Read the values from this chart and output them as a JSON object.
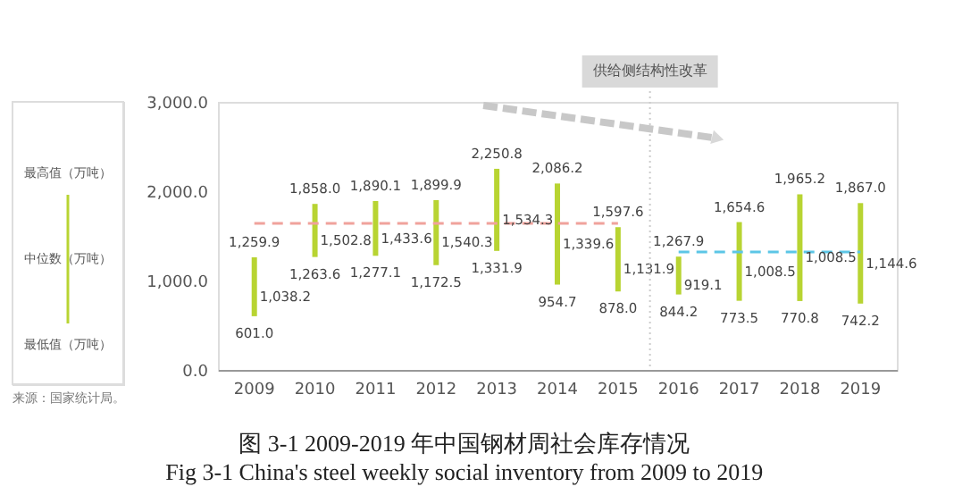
{
  "chart_data": {
    "type": "bar",
    "title": "图 3-1 2009-2019 年中国钢材周社会库存情况",
    "subtitle": "Fig 3-1 China's steel weekly social inventory from 2009 to 2019",
    "categories": [
      "2009",
      "2010",
      "2011",
      "2012",
      "2013",
      "2014",
      "2015",
      "2016",
      "2017",
      "2018",
      "2019"
    ],
    "series": [
      {
        "color": "#b8d432",
        "base": [
          601.0,
          1263.6,
          1277.1,
          1172.5,
          1331.9,
          954.7,
          878.0,
          844.2,
          773.5,
          770.8,
          742.2
        ],
        "values": [
          658.9,
          594.4,
          613.0,
          727.4,
          918.9,
          1131.5,
          719.6,
          423.7,
          881.1,
          1194.4,
          1124.8
        ]
      },
      {
        "type": "line",
        "color": "#f0a29c",
        "line_style": "dashed",
        "values": [
          1640,
          1640,
          1640,
          1640,
          1640,
          1640,
          1640,
          null,
          null,
          null,
          null
        ]
      },
      {
        "type": "line",
        "color": "#5cc6e6",
        "line_style": "dashed",
        "values": [
          null,
          null,
          null,
          null,
          null,
          null,
          null,
          1320,
          1320,
          1320,
          1320
        ]
      }
    ],
    "ylim": [
      0,
      3000
    ],
    "yticks": [
      {
        "value": 0,
        "label": "0.0"
      },
      {
        "value": 1000,
        "label": "1,000.0"
      },
      {
        "value": 2000,
        "label": "2,000.0"
      },
      {
        "value": 3000,
        "label": "3,000.0"
      }
    ],
    "grid": false,
    "annotations": [
      "最高值（万吨）",
      "中位数（万吨）",
      "最低值（万吨）",
      "供给侧结构性改革",
      "来源：国家统计局。",
      "1,038.2",
      "1,502.8",
      "1,433.6",
      "1,540.3",
      "1,534.3",
      "1,339.6",
      "1,131.9",
      "919.1",
      "1,008.5",
      "1,008.5",
      "1,144.6",
      {
        "text": "1,259.9",
        "x": "2009",
        "y": 1259.9
      },
      {
        "text": "601.0",
        "x": "2009",
        "y": 601.0
      },
      {
        "text": "1,858.0",
        "x": "2010",
        "y": 1858.0
      },
      {
        "text": "1,263.6",
        "x": "2010",
        "y": 1263.6
      },
      {
        "text": "1,890.1",
        "x": "2011",
        "y": 1890.1
      },
      {
        "text": "1,277.1",
        "x": "2011",
        "y": 1277.1
      },
      {
        "text": "1,899.9",
        "x": "2012",
        "y": 1899.9
      },
      {
        "text": "1,172.5",
        "x": "2012",
        "y": 1172.5
      },
      {
        "text": "2,250.8",
        "x": "2013",
        "y": 2250.8
      },
      {
        "text": "1,331.9",
        "x": "2013",
        "y": 1331.9
      },
      {
        "text": "2,086.2",
        "x": "2014",
        "y": 2086.2
      },
      {
        "text": "954.7",
        "x": "2014",
        "y": 954.7
      },
      {
        "text": "1,597.6",
        "x": "2015",
        "y": 1597.6
      },
      {
        "text": "878.0",
        "x": "2015",
        "y": 878.0
      },
      {
        "text": "1,267.9",
        "x": "2016",
        "y": 1267.9
      },
      {
        "text": "844.2",
        "x": "2016",
        "y": 844.2
      },
      {
        "text": "1,654.6",
        "x": "2017",
        "y": 1654.6
      },
      {
        "text": "773.5",
        "x": "2017",
        "y": 773.5
      },
      {
        "text": "1,965.2",
        "x": "2018",
        "y": 1965.2
      },
      {
        "text": "770.8",
        "x": "2018",
        "y": 770.8
      },
      {
        "text": "1,867.0",
        "x": "2019",
        "y": 1867.0
      },
      {
        "text": "742.2",
        "x": "2019",
        "y": 742.2
      }
    ]
  }
}
